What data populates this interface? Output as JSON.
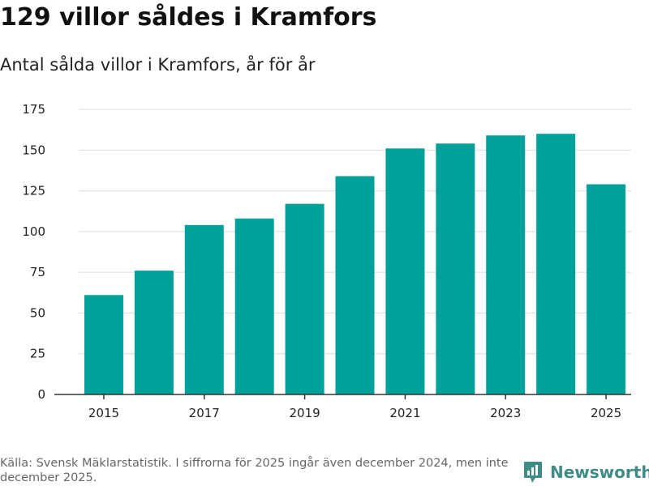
{
  "header": {
    "title": "129 villor såldes i Kramfors",
    "subtitle": "Antal sålda villor i Kramfors, år för år"
  },
  "chart_data": {
    "type": "bar",
    "title": "129 villor såldes i Kramfors",
    "subtitle": "Antal sålda villor i Kramfors, år för år",
    "xlabel": "",
    "ylabel": "",
    "categories": [
      "2015",
      "2016",
      "2017",
      "2018",
      "2019",
      "2020",
      "2021",
      "2022",
      "2023",
      "2024",
      "2025"
    ],
    "values": [
      61,
      76,
      104,
      108,
      117,
      134,
      151,
      154,
      159,
      160,
      129
    ],
    "x_tick_labels": [
      "2015",
      "2017",
      "2019",
      "2021",
      "2023",
      "2025"
    ],
    "y_ticks": [
      0,
      25,
      50,
      75,
      100,
      125,
      150,
      175
    ],
    "ylim": [
      0,
      175
    ],
    "grid": true,
    "colors": {
      "bar": "#00a19a",
      "grid": "#dcdcdc",
      "axis": "#333333"
    }
  },
  "footer": {
    "source_text": "Källa: Svensk Mäklarstatistik. I siffrorna för 2025 ingår även december 2024, men inte december 2025."
  },
  "brand": {
    "name": "Newsworthy",
    "icon": "newsworthy-logo-icon",
    "color": "#3f8c86"
  }
}
